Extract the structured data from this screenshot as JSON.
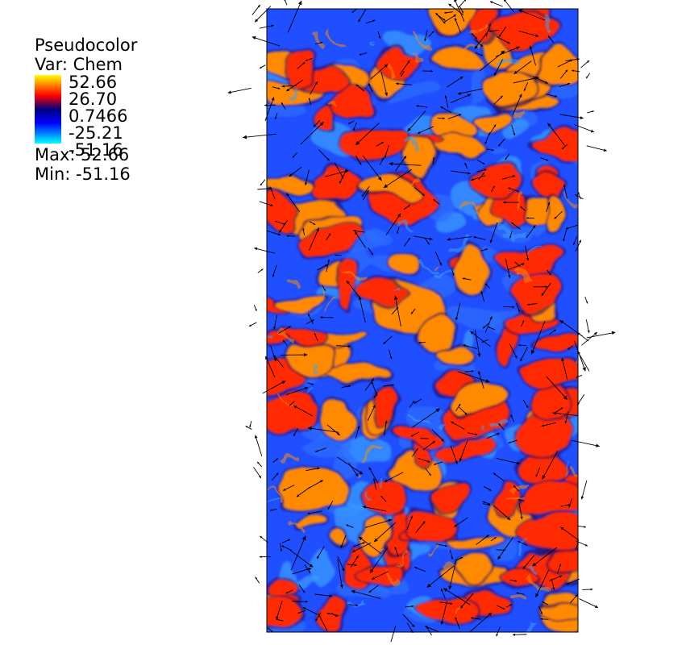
{
  "legend": {
    "title": "Pseudocolor",
    "variable": "Var: Chem",
    "ticks": [
      "52.66",
      "26.70",
      "0.7466",
      "-25.21",
      "-51.16"
    ],
    "max_label": "Max:  52.66",
    "min_label": "Min: -51.16"
  },
  "colormap": {
    "stops": [
      "#ffff00",
      "#ff0000",
      "#000080",
      "#0000ff",
      "#00ffff"
    ]
  },
  "field": {
    "name": "Chem",
    "max": 52.66,
    "min": -51.16,
    "colors": {
      "hot_dark": "#ff2a00",
      "hot_light": "#ff8a00",
      "cold_dark": "#1f4fff",
      "cold_light": "#3aa0ff",
      "boundary": "#2a0a55"
    },
    "vector_color": "#000000"
  }
}
